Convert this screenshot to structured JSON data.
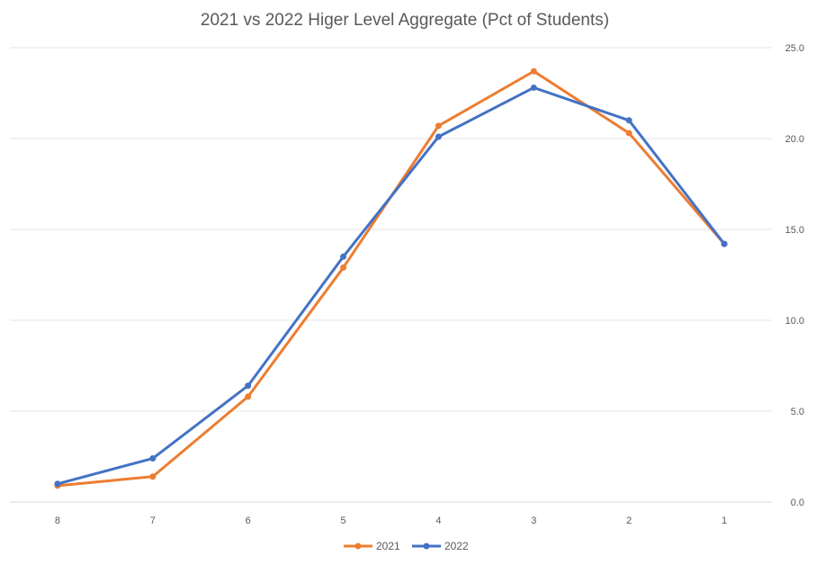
{
  "chart_data": {
    "type": "line",
    "title": "2021 vs 2022 Higer Level Aggregate (Pct of Students)",
    "xlabel": "",
    "ylabel": "",
    "categories": [
      "8",
      "7",
      "6",
      "5",
      "4",
      "3",
      "2",
      "1"
    ],
    "ylim": [
      0,
      25
    ],
    "yticks": [
      "0.0",
      "5.0",
      "10.0",
      "15.0",
      "20.0",
      "25.0"
    ],
    "grid": true,
    "legend_position": "bottom",
    "series": [
      {
        "name": "2021",
        "color": "#ED7D31",
        "values": [
          0.9,
          1.4,
          5.8,
          12.9,
          20.7,
          23.7,
          20.3,
          14.2
        ]
      },
      {
        "name": "2022",
        "color": "#4472C4",
        "values": [
          1.0,
          2.4,
          6.4,
          13.5,
          20.1,
          22.8,
          21.0,
          14.2
        ]
      }
    ]
  }
}
